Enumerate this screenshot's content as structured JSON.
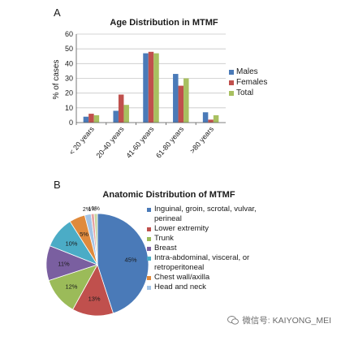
{
  "panel_a_letter": "A",
  "panel_b_letter": "B",
  "watermark": {
    "text": "微信号: KAIYONG_MEI",
    "icon": "wechat-icon"
  },
  "chart_data": [
    {
      "type": "bar",
      "title": "Age Distribution in MTMF",
      "ylabel": "% of cases",
      "xlabel": "",
      "categories": [
        "< 20 years",
        "20-40 years",
        "41-60 years",
        "61-80 years",
        ">80 years"
      ],
      "series": [
        {
          "name": "Males",
          "color": "#4a7ab8",
          "values": [
            4,
            8,
            47,
            33,
            7
          ]
        },
        {
          "name": "Females",
          "color": "#c0504d",
          "values": [
            6,
            19,
            48,
            25,
            2
          ]
        },
        {
          "name": "Total",
          "color": "#a8c060",
          "values": [
            5,
            12,
            47,
            30,
            5
          ]
        }
      ],
      "ylim": [
        0,
        60
      ],
      "yticks": [
        0,
        10,
        20,
        30,
        40,
        50,
        60
      ],
      "grid": true,
      "legend": "right"
    },
    {
      "type": "pie",
      "title": "Anatomic Distribution of MTMF",
      "slices": [
        {
          "name": "Inguinal, groin, scrotal, vulvar, perineal",
          "value": 45,
          "label": "45%",
          "color": "#4a7ab8"
        },
        {
          "name": "Lower extremity",
          "value": 13,
          "label": "13%",
          "color": "#c0504d"
        },
        {
          "name": "Trunk",
          "value": 12,
          "label": "12%",
          "color": "#9bbb59"
        },
        {
          "name": "Breast",
          "value": 11,
          "label": "11%",
          "color": "#7a5fa0"
        },
        {
          "name": "Intra-abdominal, visceral, or retroperitoneal",
          "value": 10,
          "label": "10%",
          "color": "#4bacc6"
        },
        {
          "name": "Chest wall/axilla",
          "value": 5,
          "label": "5%",
          "color": "#e08a3c"
        },
        {
          "name": "Head and neck",
          "value": 2,
          "label": "2%",
          "color": "#a3c4e6"
        },
        {
          "name": "",
          "value": 1,
          "label": "1%",
          "color": "#e6a3a3"
        },
        {
          "name": "",
          "value": 1,
          "label": "1%",
          "color": "#c4d6a0"
        }
      ],
      "legend": "right"
    }
  ]
}
